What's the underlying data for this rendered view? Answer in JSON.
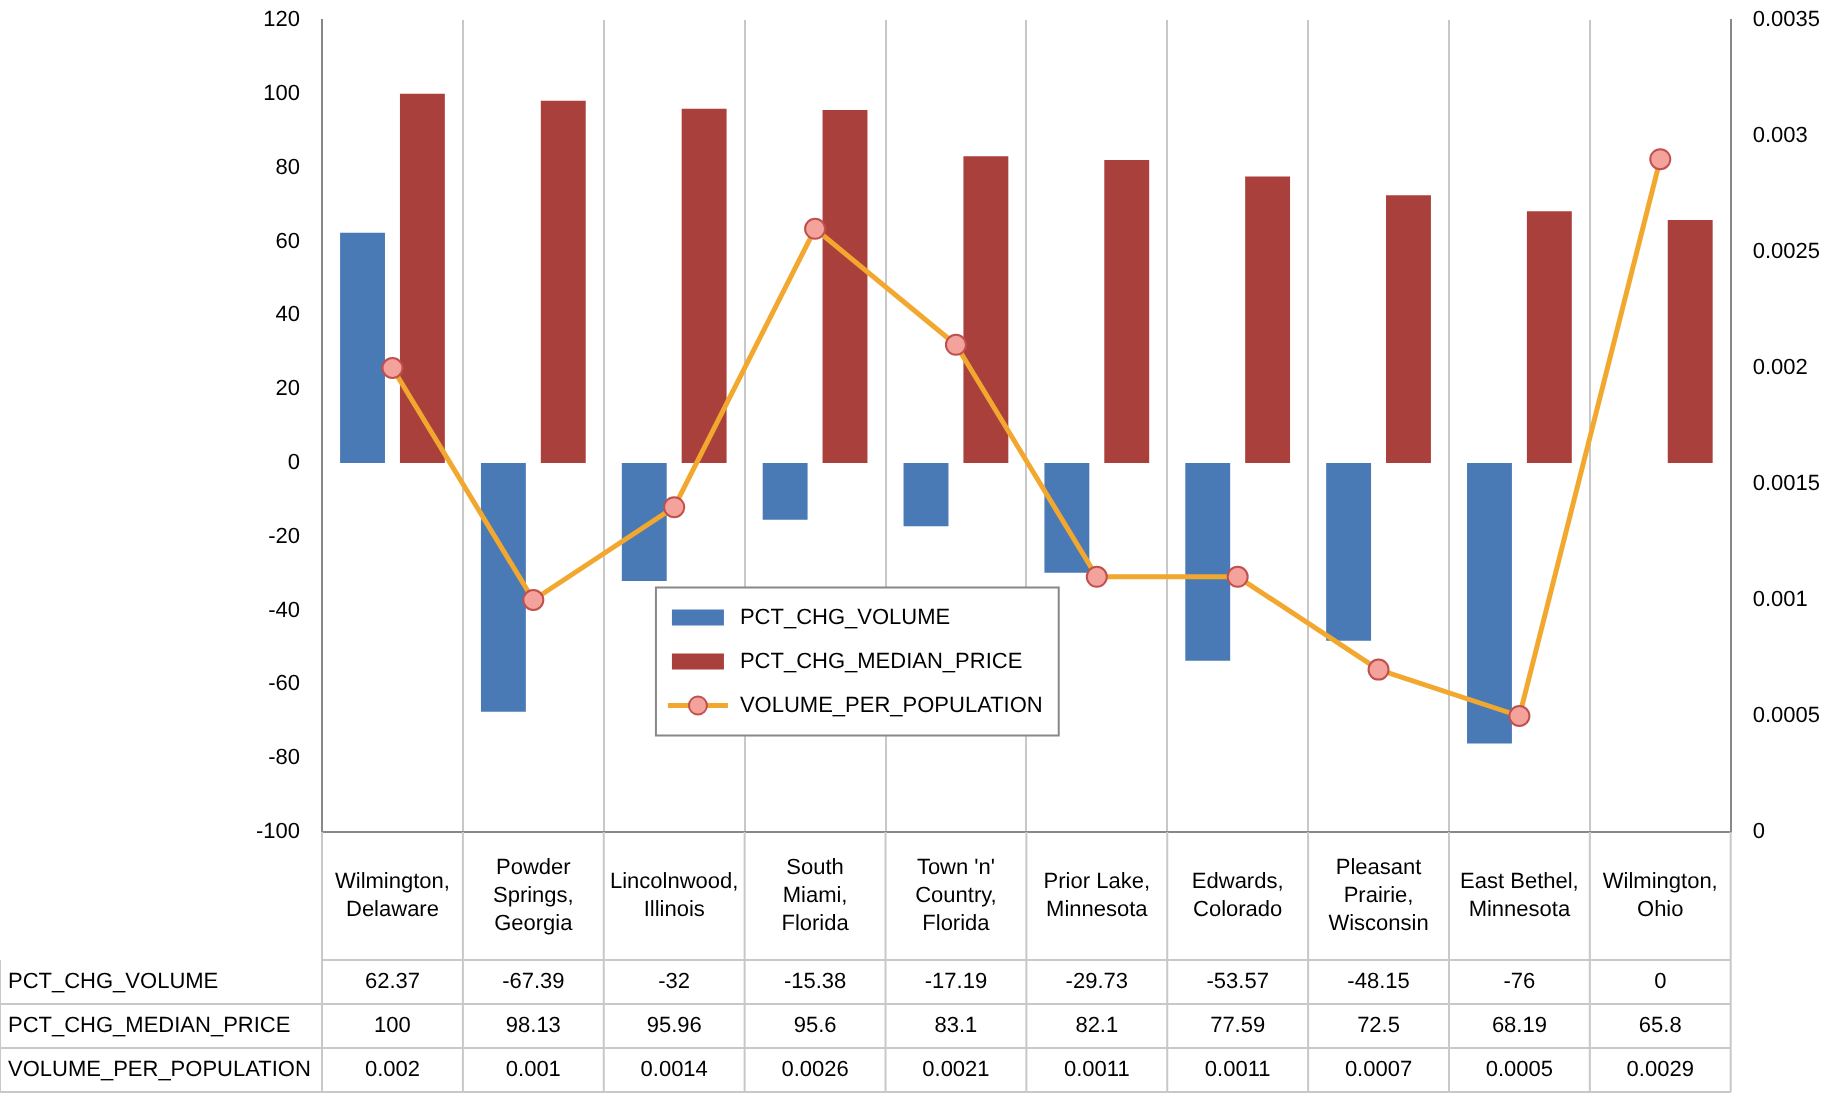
{
  "chart_data": {
    "type": "bar",
    "categories": [
      "Wilmington, Delaware",
      "Powder Springs, Georgia",
      "Lincolnwood, Illinois",
      "South Miami, Florida",
      "Town 'n' Country, Florida",
      "Prior Lake, Minnesota",
      "Edwards, Colorado",
      "Pleasant Prairie, Wisconsin",
      "East Bethel, Minnesota",
      "Wilmington, Ohio"
    ],
    "series": [
      {
        "name": "PCT_CHG_VOLUME",
        "color": "#4a7ab5",
        "values": [
          62.37,
          -67.39,
          -32,
          -15.38,
          -17.19,
          -29.73,
          -53.57,
          -48.15,
          -76,
          0
        ]
      },
      {
        "name": "PCT_CHG_MEDIAN_PRICE",
        "color": "#a9403c",
        "values": [
          100,
          98.13,
          95.96,
          95.6,
          83.1,
          82.1,
          77.59,
          72.5,
          68.19,
          65.8
        ]
      },
      {
        "name": "VOLUME_PER_POPULATION",
        "type": "line",
        "axis": "y2",
        "color": "#f2a72e",
        "marker": "circle",
        "values": [
          0.002,
          0.001,
          0.0014,
          0.0026,
          0.0021,
          0.0011,
          0.0011,
          0.0007,
          0.0005,
          0.0029
        ]
      }
    ],
    "ylim": [
      -100,
      120
    ],
    "yticks": [
      -100,
      -80,
      -60,
      -40,
      -20,
      0,
      20,
      40,
      60,
      80,
      100,
      120
    ],
    "y2lim": [
      0,
      0.0035
    ],
    "y2ticks": [
      0,
      0.0005,
      0.001,
      0.0015,
      0.002,
      0.0025,
      0.003,
      0.0035
    ],
    "grid": "x",
    "legend": "center",
    "data_labels": true
  }
}
